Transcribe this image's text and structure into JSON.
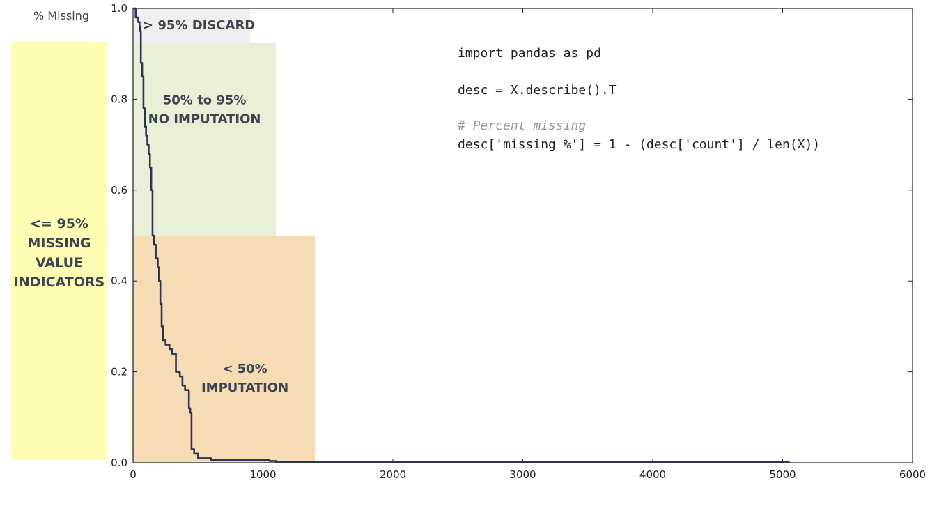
{
  "chart_data": {
    "type": "line",
    "ylabel": "% Missing",
    "xlabel": "",
    "xlim": [
      0,
      6000
    ],
    "ylim": [
      0.0,
      1.0
    ],
    "xticks": [
      "0",
      "1000",
      "2000",
      "3000",
      "4000",
      "5000",
      "6000"
    ],
    "yticks": [
      "0.0",
      "0.2",
      "0.4",
      "0.6",
      "0.8",
      "1.0"
    ],
    "grid": false,
    "series": [
      {
        "name": "",
        "color": "#2b3454",
        "x": [
          0,
          20,
          40,
          50,
          55,
          60,
          70,
          80,
          90,
          100,
          110,
          120,
          130,
          140,
          150,
          160,
          175,
          190,
          200,
          210,
          220,
          230,
          250,
          280,
          300,
          330,
          360,
          380,
          400,
          430,
          440,
          450,
          470,
          500,
          600,
          800,
          1000,
          1050,
          1100,
          2000,
          3000,
          4000,
          5000,
          5050
        ],
        "y": [
          1.0,
          0.98,
          0.97,
          0.96,
          0.95,
          0.88,
          0.85,
          0.78,
          0.74,
          0.72,
          0.7,
          0.68,
          0.65,
          0.6,
          0.5,
          0.48,
          0.45,
          0.43,
          0.4,
          0.35,
          0.3,
          0.27,
          0.26,
          0.25,
          0.24,
          0.2,
          0.19,
          0.17,
          0.16,
          0.12,
          0.11,
          0.03,
          0.02,
          0.01,
          0.006,
          0.006,
          0.006,
          0.004,
          0.002,
          0.001,
          0.001,
          0.001,
          0.001,
          0.0
        ]
      }
    ],
    "regions": [
      {
        "name": "discard",
        "label_lines": [
          "> 95% DISCARD"
        ],
        "x": [
          0,
          900
        ],
        "y": [
          0.925,
          1.0
        ],
        "color": "#efefef"
      },
      {
        "name": "no-imputation",
        "label_lines": [
          "50% to 95%",
          "NO IMPUTATION"
        ],
        "x": [
          0,
          1100
        ],
        "y": [
          0.5,
          0.925
        ],
        "color": "#e8f0d8"
      },
      {
        "name": "imputation",
        "label_lines": [
          "< 50%",
          "IMPUTATION"
        ],
        "x": [
          0,
          1400
        ],
        "y": [
          0.0,
          0.5
        ],
        "color": "#f6dcb5"
      }
    ]
  },
  "side_panel": {
    "lines": [
      "<= 95%",
      "MISSING",
      "VALUE",
      "INDICATORS"
    ],
    "color": "#fdfeb4"
  },
  "code_snippet": {
    "line1": "import pandas as pd",
    "line2": "desc = X.describe().T",
    "comment": "# Percent missing",
    "line3": "desc['missing %'] = 1 - (desc['count'] / len(X))"
  }
}
